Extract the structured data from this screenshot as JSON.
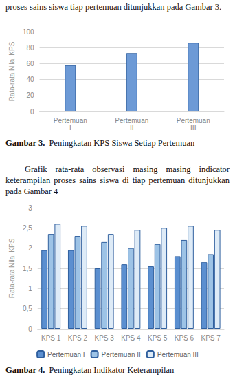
{
  "page": {
    "intro": "proses sains siswa tiap pertemuan ditunjukkan pada Gambar 3.",
    "caption_3_label": "Gambar 3.",
    "caption_3_text": "Peningkatan KPS Siswa Setiap Pertemuan",
    "paragraph": "Grafik rata-rata observasi masing masing indicator keterampilan proses sains siswa di tiap pertemuan ditunjukkan pada Gambar 4",
    "caption_4_label": "Gambar 4.",
    "caption_4_text": "Peningkatan Indikator Keterampilan"
  },
  "chart_data": [
    {
      "type": "bar",
      "y_label": "Rata-rata Nilai KPS",
      "categories": [
        "Pertemuan I",
        "Pertemuan II",
        "Pertemuan III"
      ],
      "values": [
        58,
        73,
        86
      ],
      "color": "#6d9ad6",
      "ylim": [
        0,
        100
      ],
      "yticks": [
        0,
        20,
        40,
        60,
        80,
        100
      ],
      "grid": true
    },
    {
      "type": "bar",
      "y_label": "Rata-rata Nilai KPS",
      "categories": [
        "KPS 1",
        "KPS 2",
        "KPS 3",
        "KPS 4",
        "KPS 5",
        "KPS 6",
        "KPS 7"
      ],
      "series": [
        {
          "name": "Pertemuan I",
          "color": "#5b8fd0",
          "values": [
            1.95,
            1.95,
            1.5,
            1.6,
            1.55,
            1.8,
            1.65
          ]
        },
        {
          "name": "Pertemuan II",
          "color": "#9dc3e6",
          "values": [
            2.35,
            2.3,
            2.15,
            2.0,
            2.1,
            2.2,
            1.85
          ]
        },
        {
          "name": "Pertemuan III",
          "color": "#deebf7",
          "values": [
            2.6,
            2.55,
            2.35,
            2.45,
            2.5,
            2.55,
            2.45
          ]
        }
      ],
      "ylim": [
        0,
        3
      ],
      "yticks": [
        0,
        {
          "value": 0.5,
          "label": "0,5"
        },
        1,
        {
          "value": 1.5,
          "label": "1,5"
        },
        2,
        {
          "value": 2.5,
          "label": "2,5"
        },
        3
      ],
      "grid": true,
      "legend": "bottom"
    }
  ]
}
